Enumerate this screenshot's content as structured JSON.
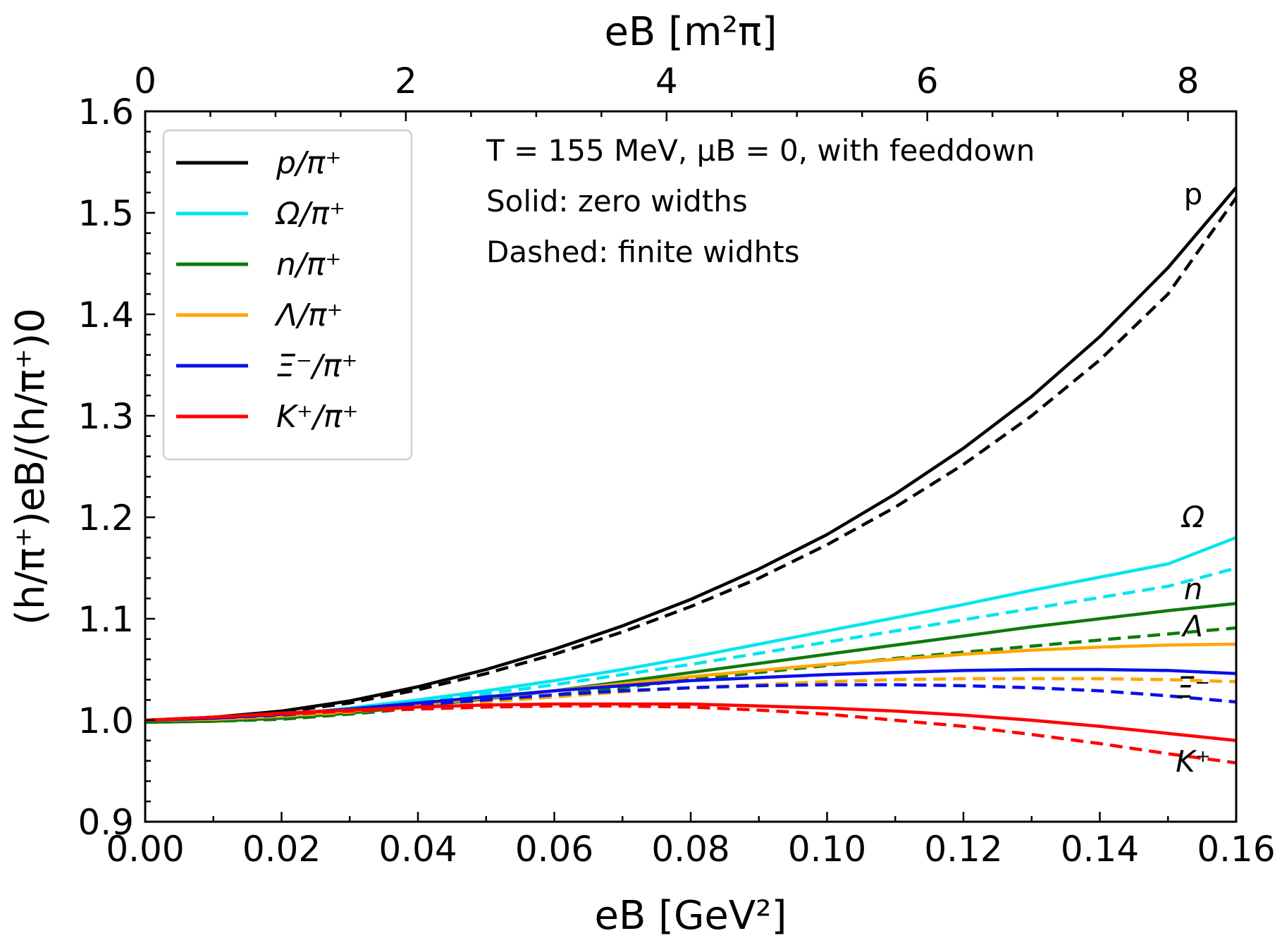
{
  "chart_data": {
    "type": "line",
    "xlabel": "eB [GeV²]",
    "ylabel": "(h/π⁺)eB/(h/π⁺)0",
    "top_xlabel": "eB [m²π]",
    "xlim": [
      0,
      0.16
    ],
    "ylim": [
      0.9,
      1.6
    ],
    "top_xlim": [
      0,
      8.37
    ],
    "xticks": [
      "0.00",
      "0.02",
      "0.04",
      "0.06",
      "0.08",
      "0.10",
      "0.12",
      "0.14",
      "0.16"
    ],
    "xtick_values": [
      0,
      0.02,
      0.04,
      0.06,
      0.08,
      0.1,
      0.12,
      0.14,
      0.16
    ],
    "yticks": [
      "0.9",
      "1.0",
      "1.1",
      "1.2",
      "1.3",
      "1.4",
      "1.5",
      "1.6"
    ],
    "ytick_values": [
      0.9,
      1.0,
      1.1,
      1.2,
      1.3,
      1.4,
      1.5,
      1.6
    ],
    "top_xticks": [
      "0",
      "2",
      "4",
      "6",
      "8"
    ],
    "top_xtick_values": [
      0,
      2,
      4,
      6,
      8
    ],
    "grid": false,
    "legend_position": "top-left",
    "annotations": [
      "T = 155 MeV, μB = 0, with feeddown",
      "Solid: zero widths",
      "Dashed: finite widhts"
    ],
    "x": [
      0,
      0.01,
      0.02,
      0.03,
      0.04,
      0.05,
      0.06,
      0.07,
      0.08,
      0.09,
      0.1,
      0.11,
      0.12,
      0.13,
      0.14,
      0.15,
      0.16
    ],
    "series": [
      {
        "name": "p/π⁺",
        "end_label": "p",
        "color": "#000000",
        "solid": [
          1.0,
          1.003,
          1.009,
          1.019,
          1.033,
          1.05,
          1.07,
          1.093,
          1.119,
          1.149,
          1.183,
          1.223,
          1.268,
          1.319,
          1.378,
          1.446,
          1.525
        ],
        "dashed": [
          1.0,
          1.003,
          1.008,
          1.017,
          1.03,
          1.046,
          1.065,
          1.087,
          1.112,
          1.14,
          1.173,
          1.21,
          1.252,
          1.3,
          1.355,
          1.42,
          1.515
        ]
      },
      {
        "name": "Ω/π⁺",
        "end_label": "Ω",
        "color": "#00e5ee",
        "solid": [
          1.0,
          1.0,
          1.005,
          1.012,
          1.02,
          1.029,
          1.039,
          1.05,
          1.062,
          1.075,
          1.088,
          1.101,
          1.114,
          1.128,
          1.141,
          1.154,
          1.18
        ],
        "dashed": [
          1.0,
          1.0,
          1.004,
          1.011,
          1.018,
          1.026,
          1.035,
          1.045,
          1.055,
          1.066,
          1.077,
          1.088,
          1.099,
          1.11,
          1.121,
          1.132,
          1.15
        ]
      },
      {
        "name": "n/π⁺",
        "end_label": "n",
        "color": "#0e7a0e",
        "solid": [
          0.998,
          0.999,
          1.002,
          1.007,
          1.014,
          1.021,
          1.029,
          1.038,
          1.047,
          1.056,
          1.065,
          1.074,
          1.083,
          1.092,
          1.1,
          1.108,
          1.115
        ],
        "dashed": [
          0.998,
          0.999,
          1.001,
          1.006,
          1.012,
          1.018,
          1.025,
          1.032,
          1.04,
          1.047,
          1.054,
          1.061,
          1.067,
          1.073,
          1.079,
          1.085,
          1.091
        ]
      },
      {
        "name": "Λ/π⁺",
        "end_label": "Λ",
        "color": "#ffa500",
        "solid": [
          1.0,
          1.001,
          1.004,
          1.009,
          1.015,
          1.022,
          1.029,
          1.036,
          1.043,
          1.049,
          1.055,
          1.06,
          1.065,
          1.069,
          1.072,
          1.074,
          1.075
        ],
        "dashed": [
          1.0,
          1.001,
          1.004,
          1.008,
          1.013,
          1.018,
          1.023,
          1.028,
          1.032,
          1.035,
          1.038,
          1.04,
          1.041,
          1.041,
          1.041,
          1.04,
          1.038
        ]
      },
      {
        "name": "Ξ⁻/π⁺",
        "end_label": "Ξ⁻",
        "color": "#0a10e6",
        "solid": [
          1.0,
          1.002,
          1.006,
          1.011,
          1.017,
          1.023,
          1.029,
          1.034,
          1.039,
          1.042,
          1.045,
          1.047,
          1.049,
          1.05,
          1.05,
          1.049,
          1.046
        ],
        "dashed": [
          1.0,
          1.002,
          1.005,
          1.01,
          1.015,
          1.02,
          1.025,
          1.029,
          1.032,
          1.034,
          1.035,
          1.035,
          1.034,
          1.032,
          1.029,
          1.024,
          1.018
        ]
      },
      {
        "name": "K⁺/π⁺",
        "end_label": "K⁺",
        "color": "#ff0000",
        "solid": [
          1.0,
          1.003,
          1.007,
          1.01,
          1.013,
          1.015,
          1.016,
          1.016,
          1.016,
          1.014,
          1.012,
          1.009,
          1.005,
          1.0,
          0.994,
          0.987,
          0.98
        ],
        "dashed": [
          1.0,
          1.003,
          1.006,
          1.009,
          1.011,
          1.013,
          1.014,
          1.014,
          1.013,
          1.01,
          1.006,
          1.0,
          0.994,
          0.986,
          0.977,
          0.967,
          0.958
        ]
      }
    ]
  }
}
